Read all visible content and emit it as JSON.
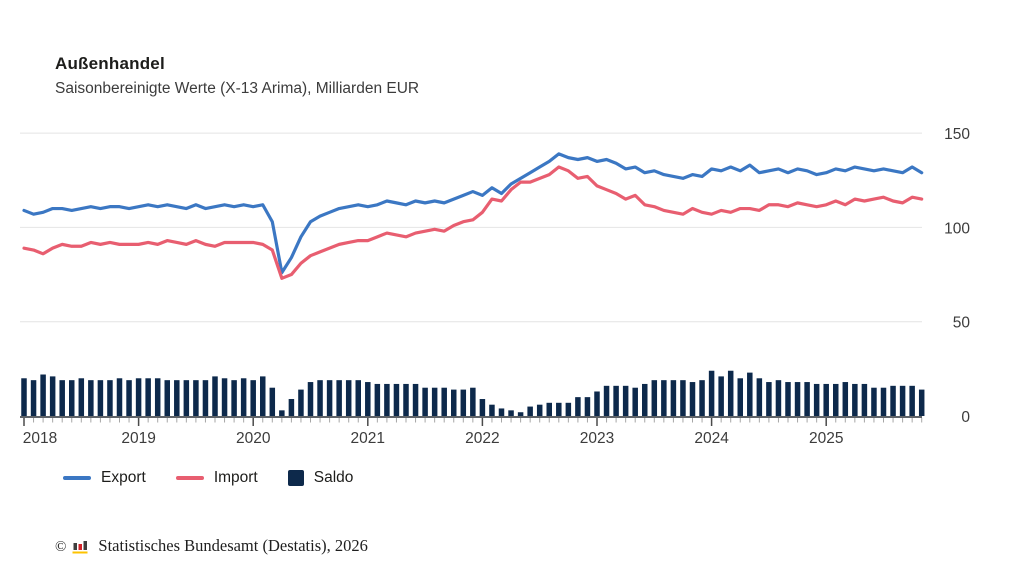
{
  "header": {
    "title": "Außenhandel",
    "subtitle": "Saisonbereinigte Werte (X-13 Arima), Milliarden EUR"
  },
  "legend": [
    {
      "label": "Export",
      "type": "line",
      "color": "#3b77c3"
    },
    {
      "label": "Import",
      "type": "line",
      "color": "#e85e70"
    },
    {
      "label": "Saldo",
      "type": "square",
      "color": "#0d294b"
    }
  ],
  "footer": {
    "copyright": "©",
    "source": "Statistisches Bundesamt (Destatis), 2026",
    "logo": {
      "bar_dark": "#3f3f3e",
      "bar_red": "#d2232a",
      "base_gold": "#fdc300"
    }
  },
  "colors": {
    "export_line": "#3b77c3",
    "import_line": "#e85e70",
    "saldo_bar": "#0d294b",
    "gridline": "#e4e4e4",
    "axis": "#5f6368",
    "tick_minor": "#a6a6a6",
    "tick_year": "#4a4a4a",
    "text": "#3c3c3c"
  },
  "chart_data": {
    "type": "line+bar",
    "title": "Außenhandel",
    "subtitle": "Saisonbereinigte Werte (X-13 Arima), Milliarden EUR",
    "unit": "Milliarden EUR",
    "frequency": "monthly",
    "x_start": "2018-01",
    "x_end": "2025-11",
    "x_tick_labels": [
      "2018",
      "2019",
      "2020",
      "2021",
      "2022",
      "2023",
      "2024",
      "2025"
    ],
    "yticks": [
      0,
      50,
      100,
      150
    ],
    "ylim": [
      0,
      155
    ],
    "grid": "horizontal",
    "legend_position": "bottom-left",
    "series": [
      {
        "name": "Export",
        "type": "line",
        "color": "#3b77c3",
        "values": [
          109,
          107,
          108,
          110,
          110,
          109,
          110,
          111,
          110,
          111,
          111,
          110,
          111,
          112,
          111,
          112,
          111,
          110,
          112,
          110,
          111,
          112,
          111,
          112,
          111,
          112,
          103,
          76,
          84,
          95,
          103,
          106,
          108,
          110,
          111,
          112,
          111,
          112,
          114,
          113,
          112,
          114,
          113,
          114,
          113,
          115,
          117,
          119,
          117,
          121,
          118,
          123,
          126,
          129,
          132,
          135,
          139,
          137,
          136,
          137,
          135,
          136,
          134,
          131,
          132,
          129,
          130,
          128,
          127,
          126,
          128,
          127,
          131,
          130,
          132,
          130,
          133,
          129,
          130,
          131,
          129,
          131,
          130,
          128,
          129,
          131,
          130,
          132,
          131,
          130,
          131,
          130,
          129,
          132,
          129
        ]
      },
      {
        "name": "Import",
        "type": "line",
        "color": "#e85e70",
        "values": [
          89,
          88,
          86,
          89,
          91,
          90,
          90,
          92,
          91,
          92,
          91,
          91,
          91,
          92,
          91,
          93,
          92,
          91,
          93,
          91,
          90,
          92,
          92,
          92,
          92,
          91,
          88,
          73,
          75,
          81,
          85,
          87,
          89,
          91,
          92,
          93,
          93,
          95,
          97,
          96,
          95,
          97,
          98,
          99,
          98,
          101,
          103,
          104,
          108,
          115,
          114,
          120,
          124,
          124,
          126,
          128,
          132,
          130,
          126,
          127,
          122,
          120,
          118,
          115,
          117,
          112,
          111,
          109,
          108,
          107,
          110,
          108,
          107,
          109,
          108,
          110,
          110,
          109,
          112,
          112,
          111,
          113,
          112,
          111,
          112,
          114,
          112,
          115,
          114,
          115,
          116,
          114,
          113,
          116,
          115
        ]
      },
      {
        "name": "Saldo",
        "type": "bar",
        "color": "#0d294b",
        "values": [
          20,
          19,
          22,
          21,
          19,
          19,
          20,
          19,
          19,
          19,
          20,
          19,
          20,
          20,
          20,
          19,
          19,
          19,
          19,
          19,
          21,
          20,
          19,
          20,
          19,
          21,
          15,
          3,
          9,
          14,
          18,
          19,
          19,
          19,
          19,
          19,
          18,
          17,
          17,
          17,
          17,
          17,
          15,
          15,
          15,
          14,
          14,
          15,
          9,
          6,
          4,
          3,
          2,
          5,
          6,
          7,
          7,
          7,
          10,
          10,
          13,
          16,
          16,
          16,
          15,
          17,
          19,
          19,
          19,
          19,
          18,
          19,
          24,
          21,
          24,
          20,
          23,
          20,
          18,
          19,
          18,
          18,
          18,
          17,
          17,
          17,
          18,
          17,
          17,
          15,
          15,
          16,
          16,
          16,
          14
        ]
      }
    ]
  }
}
